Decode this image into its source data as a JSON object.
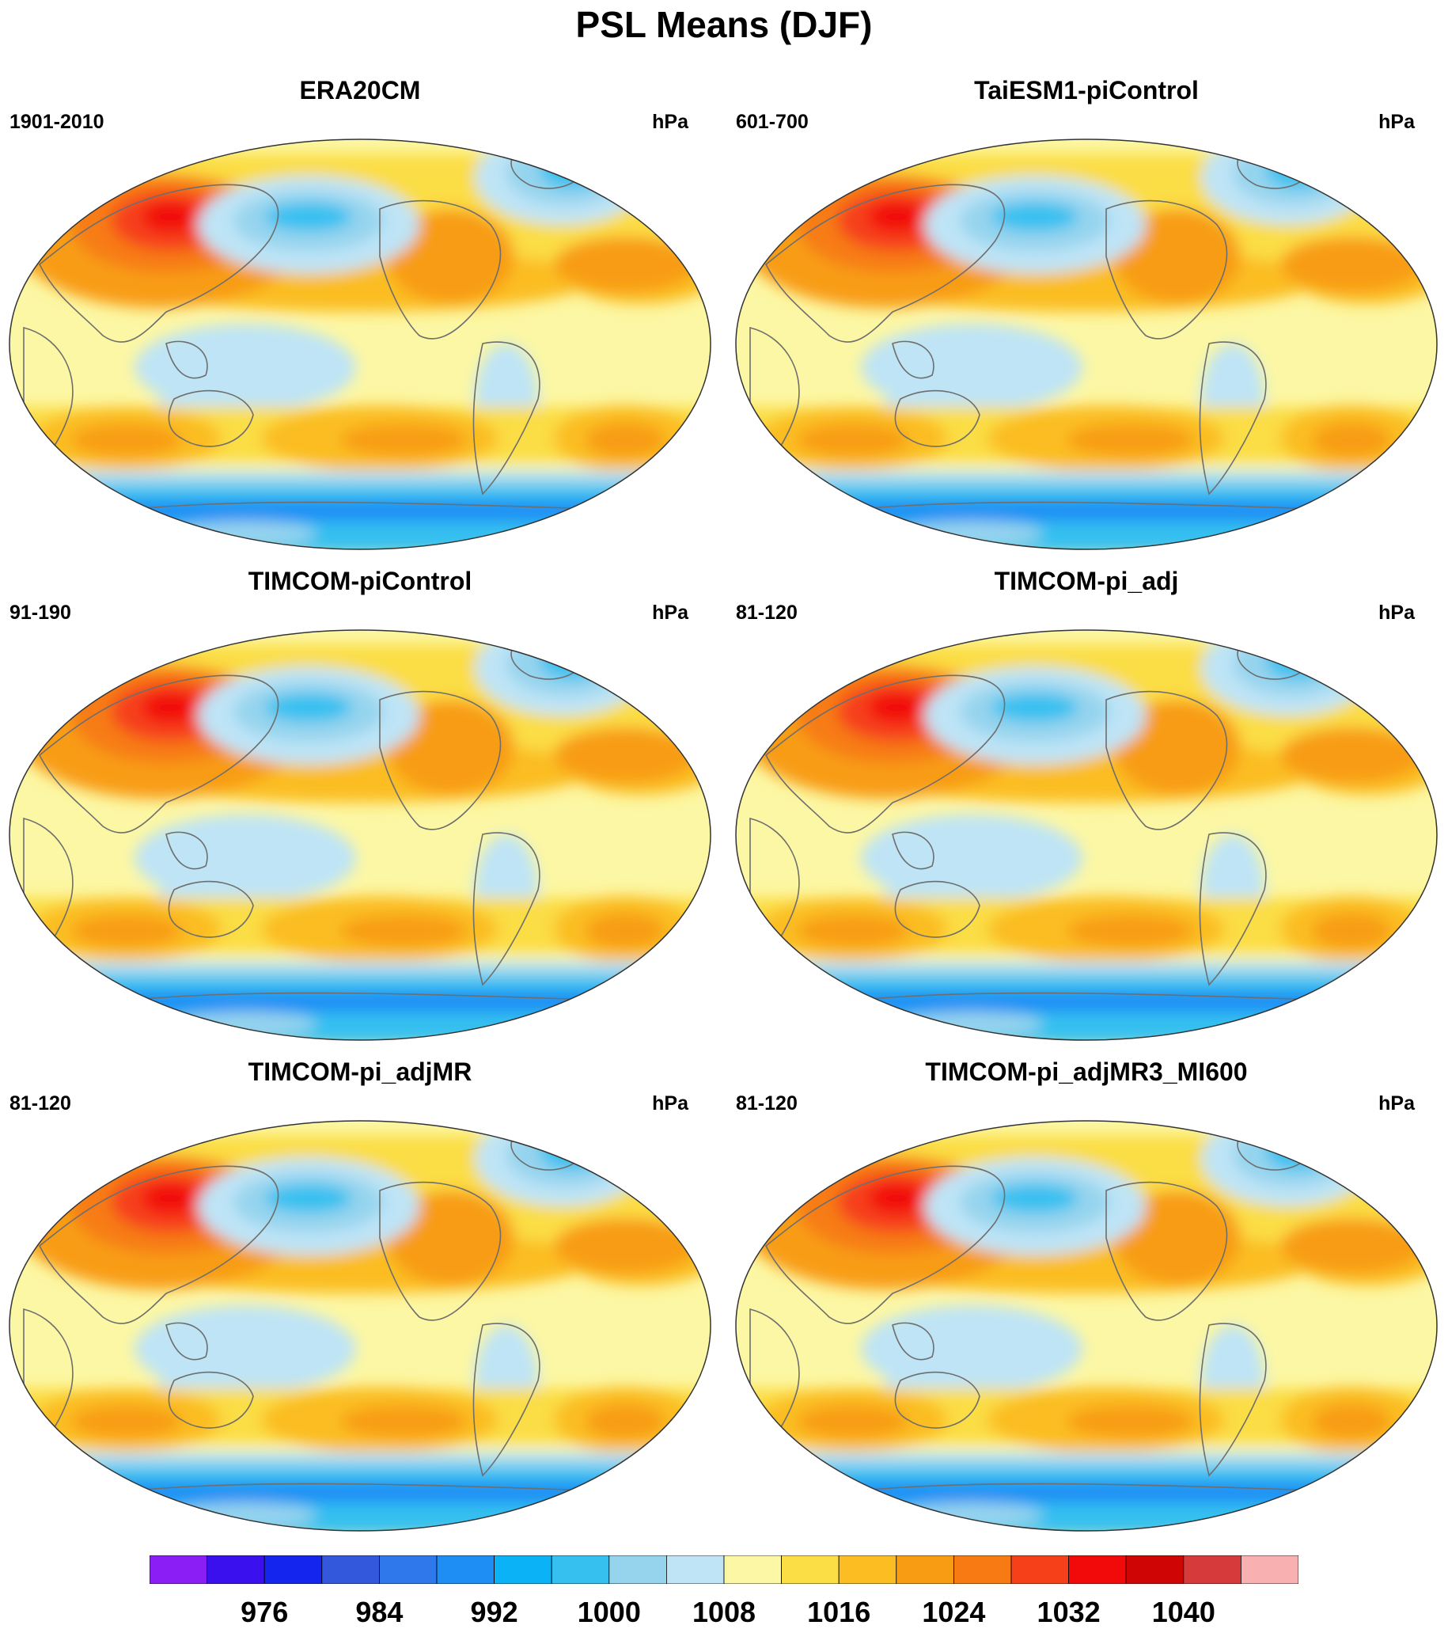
{
  "title": "PSL Means (DJF)",
  "panels": [
    {
      "name": "ERA20CM",
      "years": "1901-2010",
      "units": "hPa"
    },
    {
      "name": "TaiESM1-piControl",
      "years": "601-700",
      "units": "hPa"
    },
    {
      "name": "TIMCOM-piControl",
      "years": "91-190",
      "units": "hPa"
    },
    {
      "name": "TIMCOM-pi_adj",
      "years": "81-120",
      "units": "hPa"
    },
    {
      "name": "TIMCOM-pi_adjMR",
      "years": "81-120",
      "units": "hPa"
    },
    {
      "name": "TIMCOM-pi_adjMR3_MI600",
      "years": "81-120",
      "units": "hPa"
    }
  ],
  "colorbar": {
    "labels": [
      "976",
      "984",
      "992",
      "1000",
      "1008",
      "1016",
      "1024",
      "1032",
      "1040"
    ],
    "colors": [
      "#8a1ef5",
      "#3a10ee",
      "#1426ee",
      "#3458dc",
      "#2f78ec",
      "#1e8ef4",
      "#0cb2f6",
      "#36c0f0",
      "#96d4ee",
      "#bee4f6",
      "#fcf7a4",
      "#fbdd45",
      "#fbbd22",
      "#f89c14",
      "#f77b12",
      "#f6401a",
      "#f20a0a",
      "#cf0404",
      "#d63a3a",
      "#f9b0b0"
    ]
  },
  "map_style": {
    "ocean_base": "#fcf7a4",
    "coastline": "#6e6e6e"
  }
}
